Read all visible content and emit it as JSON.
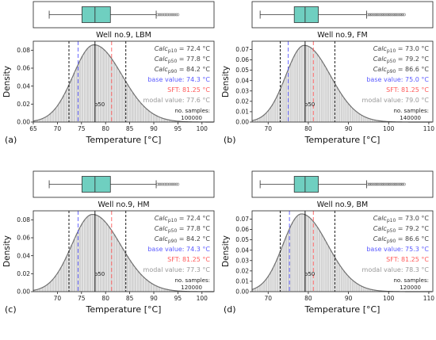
{
  "panels": [
    {
      "letter": "(a)",
      "title": "Well no.9, LBM",
      "xlabel": "Temperature [°C]",
      "ylabel": "Density",
      "xlim": [
        65,
        102.5
      ],
      "ylim": [
        0,
        0.09
      ],
      "xticks": [
        65,
        70,
        75,
        80,
        85,
        90,
        95,
        100
      ],
      "yticks": [
        0.0,
        0.02,
        0.04,
        0.06,
        0.08
      ],
      "ytick_labels": [
        "0.00",
        "0.02",
        "0.04",
        "0.06",
        "0.08"
      ],
      "box": {
        "whisker_low": 68.3,
        "q1": 75.1,
        "median": 77.8,
        "q3": 81.0,
        "whisker_high": 90.5,
        "fliers_max": 95.0
      },
      "mode": 77.6,
      "peak": 0.086,
      "sigma_left": 4.3,
      "sigma_right": 5.8,
      "p10": 72.4,
      "p50": 77.8,
      "p90": 84.2,
      "base_value": 74.3,
      "sft": 81.25,
      "calc_p10_text": "Calc",
      "sub_p10": "p10",
      "val_p10": " = 72.4 °C",
      "sub_p50": "p50",
      "val_p50": " = 77.8 °C",
      "sub_p90": "p90",
      "val_p90": " = 84.2 °C",
      "base_text": "base value: 74.3 °C",
      "sft_text": "SFT: 81.25 °C",
      "modal_text": "modal value: 77.6 °C",
      "p50_label": "p50",
      "samples_label": "no. samples:",
      "samples_value": "100000"
    },
    {
      "letter": "(b)",
      "title": "Well no.9, FM",
      "xlabel": "Temperature [°C]",
      "ylabel": "Density",
      "xlim": [
        66,
        111
      ],
      "ylim": [
        0,
        0.078
      ],
      "xticks": [
        70,
        80,
        90,
        100,
        110
      ],
      "yticks": [
        0.0,
        0.01,
        0.02,
        0.03,
        0.04,
        0.05,
        0.06,
        0.07
      ],
      "ytick_labels": [
        "0.00",
        "0.01",
        "0.02",
        "0.03",
        "0.04",
        "0.05",
        "0.06",
        "0.07"
      ],
      "box": {
        "whisker_low": 68.0,
        "q1": 76.5,
        "median": 79.2,
        "q3": 82.5,
        "whisker_high": 94.5,
        "fliers_max": 104.0
      },
      "mode": 79.0,
      "peak": 0.074,
      "sigma_left": 4.6,
      "sigma_right": 6.5,
      "p10": 73.0,
      "p50": 79.2,
      "p90": 86.6,
      "base_value": 75.0,
      "sft": 81.25,
      "calc_p10_text": "Calc",
      "sub_p10": "p10",
      "val_p10": " = 73.0 °C",
      "sub_p50": "p50",
      "val_p50": " = 79.2 °C",
      "sub_p90": "p90",
      "val_p90": " = 86.6 °C",
      "base_text": "base value: 75.0 °C",
      "sft_text": "SFT: 81.25 °C",
      "modal_text": "modal value: 79.0 °C",
      "p50_label": "p50",
      "samples_label": "no. samples:",
      "samples_value": "140000"
    },
    {
      "letter": "(c)",
      "title": "Well no.9, HM",
      "xlabel": "Temperature [°C]",
      "ylabel": "Density",
      "xlim": [
        65,
        102.5
      ],
      "ylim": [
        0,
        0.09
      ],
      "xticks": [
        70,
        75,
        80,
        85,
        90,
        95,
        100
      ],
      "yticks": [
        0.0,
        0.02,
        0.04,
        0.06,
        0.08
      ],
      "ytick_labels": [
        "0.00",
        "0.02",
        "0.04",
        "0.06",
        "0.08"
      ],
      "box": {
        "whisker_low": 68.3,
        "q1": 75.1,
        "median": 77.8,
        "q3": 81.0,
        "whisker_high": 90.5,
        "fliers_max": 95.0
      },
      "mode": 77.3,
      "peak": 0.086,
      "sigma_left": 4.3,
      "sigma_right": 5.8,
      "p10": 72.4,
      "p50": 77.8,
      "p90": 84.2,
      "base_value": 74.3,
      "sft": 81.25,
      "calc_p10_text": "Calc",
      "sub_p10": "p10",
      "val_p10": " = 72.4 °C",
      "sub_p50": "p50",
      "val_p50": " = 77.8 °C",
      "sub_p90": "p90",
      "val_p90": " = 84.2 °C",
      "base_text": "base value: 74.3 °C",
      "sft_text": "SFT: 81.25 °C",
      "modal_text": "modal value: 77.3 °C",
      "p50_label": "p50",
      "samples_label": "no. samples:",
      "samples_value": "120000"
    },
    {
      "letter": "(d)",
      "title": "Well no.9, BM",
      "xlabel": "Temperature [°C]",
      "ylabel": "Density",
      "xlim": [
        66,
        111
      ],
      "ylim": [
        0,
        0.078
      ],
      "xticks": [
        70,
        80,
        90,
        100,
        110
      ],
      "yticks": [
        0.0,
        0.01,
        0.02,
        0.03,
        0.04,
        0.05,
        0.06,
        0.07
      ],
      "ytick_labels": [
        "0.00",
        "0.01",
        "0.02",
        "0.03",
        "0.04",
        "0.05",
        "0.06",
        "0.07"
      ],
      "box": {
        "whisker_low": 68.0,
        "q1": 76.5,
        "median": 79.2,
        "q3": 82.5,
        "whisker_high": 94.5,
        "fliers_max": 104.0
      },
      "mode": 78.3,
      "peak": 0.075,
      "sigma_left": 4.6,
      "sigma_right": 6.5,
      "p10": 73.0,
      "p50": 79.2,
      "p90": 86.6,
      "base_value": 75.3,
      "sft": 81.25,
      "calc_p10_text": "Calc",
      "sub_p10": "p10",
      "val_p10": " = 73.0 °C",
      "sub_p50": "p50",
      "val_p50": " = 79.2 °C",
      "sub_p90": "p90",
      "val_p90": " = 86.6 °C",
      "base_text": "base value: 75.3 °C",
      "sft_text": "SFT: 81.25 °C",
      "modal_text": "modal value: 78.3 °C",
      "p50_label": "p50",
      "samples_label": "no. samples:",
      "samples_value": "120000"
    }
  ],
  "colors": {
    "box_fill": "#6fcfc0",
    "hist_fill": "#d3d3d3",
    "hist_edge": "#ffffff",
    "kde": "#707070",
    "calc_lines": "#000000",
    "base": "#5a5aff",
    "sft": "#ff5a5a",
    "modal": "#999999",
    "text": "#444444"
  },
  "chart_data": [
    {
      "type": "histogram+kde+boxplot",
      "title": "Well no.9, LBM",
      "xlabel": "Temperature [°C]",
      "ylabel": "Density",
      "xlim": [
        65,
        102.5
      ],
      "ylim": [
        0,
        0.09
      ],
      "mode": 77.6,
      "peak_density": 0.086,
      "p10": 72.4,
      "p50": 77.8,
      "p90": 84.2,
      "base_value": 74.3,
      "sft": 81.25,
      "samples": 100000
    },
    {
      "type": "histogram+kde+boxplot",
      "title": "Well no.9, FM",
      "xlabel": "Temperature [°C]",
      "ylabel": "Density",
      "xlim": [
        66,
        111
      ],
      "ylim": [
        0,
        0.078
      ],
      "mode": 79.0,
      "peak_density": 0.074,
      "p10": 73.0,
      "p50": 79.2,
      "p90": 86.6,
      "base_value": 75.0,
      "sft": 81.25,
      "samples": 140000
    },
    {
      "type": "histogram+kde+boxplot",
      "title": "Well no.9, HM",
      "xlabel": "Temperature [°C]",
      "ylabel": "Density",
      "xlim": [
        65,
        102.5
      ],
      "ylim": [
        0,
        0.09
      ],
      "mode": 77.3,
      "peak_density": 0.086,
      "p10": 72.4,
      "p50": 77.8,
      "p90": 84.2,
      "base_value": 74.3,
      "sft": 81.25,
      "samples": 120000
    },
    {
      "type": "histogram+kde+boxplot",
      "title": "Well no.9, BM",
      "xlabel": "Temperature [°C]",
      "ylabel": "Density",
      "xlim": [
        66,
        111
      ],
      "ylim": [
        0,
        0.078
      ],
      "mode": 78.3,
      "peak_density": 0.075,
      "p10": 73.0,
      "p50": 79.2,
      "p90": 86.6,
      "base_value": 75.3,
      "sft": 81.25,
      "samples": 120000
    }
  ]
}
